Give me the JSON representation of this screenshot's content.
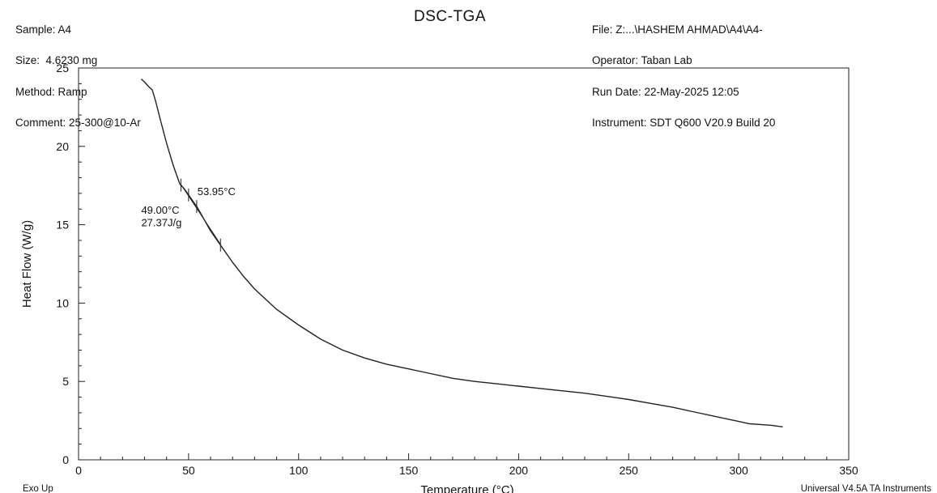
{
  "header": {
    "left": [
      "Sample: A4",
      "Size:  4.6230 mg",
      "Method: Ramp",
      "Comment: 25-300@10-Ar"
    ],
    "right": [
      "File: Z:...\\HASHEM AHMAD\\A4\\A4-",
      "Operator: Taban Lab",
      "Run Date: 22-May-2025 12:05",
      "Instrument: SDT Q600 V20.9 Build 20"
    ]
  },
  "footer": {
    "left": "Exo Up",
    "right": "Universal V4.5A TA Instruments"
  },
  "chart_data": {
    "type": "line",
    "title": "DSC-TGA",
    "xlabel": "Temperature (°C)",
    "ylabel": "Heat Flow (W/g)",
    "xlim": [
      0,
      350
    ],
    "ylim": [
      0,
      25
    ],
    "xticks": [
      0,
      50,
      100,
      150,
      200,
      250,
      300,
      350
    ],
    "yticks": [
      0,
      5,
      10,
      15,
      20,
      25
    ],
    "grid": false,
    "series": [
      {
        "x": [
          28.5,
          30,
          32,
          33.5,
          35,
          37,
          40,
          43,
          46,
          48,
          50,
          52,
          54,
          56,
          58,
          60,
          62,
          65,
          70,
          75,
          80,
          90,
          100,
          110,
          120,
          130,
          140,
          150,
          160,
          170,
          180,
          190,
          200,
          210,
          220,
          230,
          240,
          250,
          260,
          270,
          280,
          290,
          300,
          305,
          310,
          315,
          320
        ],
        "y": [
          24.3,
          24.1,
          23.8,
          23.6,
          22.9,
          21.8,
          20.2,
          18.8,
          17.6,
          17.3,
          16.9,
          16.5,
          16.1,
          15.6,
          15.1,
          14.6,
          14.2,
          13.6,
          12.6,
          11.7,
          10.9,
          9.6,
          8.6,
          7.7,
          7.0,
          6.5,
          6.1,
          5.8,
          5.5,
          5.2,
          5.0,
          4.85,
          4.7,
          4.55,
          4.4,
          4.25,
          4.05,
          3.85,
          3.6,
          3.35,
          3.05,
          2.75,
          2.45,
          2.3,
          2.25,
          2.2,
          2.1
        ]
      }
    ],
    "annotations": [
      {
        "text": "53.95°C",
        "x": 54,
        "y": 16.9
      },
      {
        "text": "49.00°C",
        "x": 28.5,
        "y": 15.7
      },
      {
        "text": "27.37J/g",
        "x": 28.5,
        "y": 14.9
      }
    ],
    "marker_ticks_x": [
      46.5,
      50,
      53.7,
      64.5
    ]
  }
}
